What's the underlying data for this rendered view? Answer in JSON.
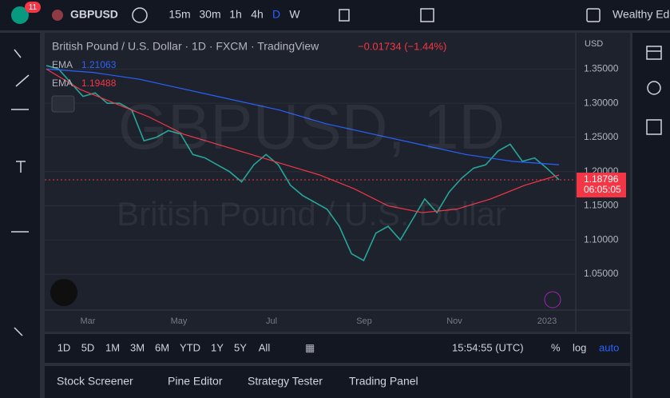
{
  "toolbar": {
    "badge": "11",
    "symbol": "GBPUSD",
    "intervals": [
      "15m",
      "30m",
      "1h",
      "4h",
      "D",
      "W"
    ],
    "account": "Wealthy Edd"
  },
  "chart": {
    "type": "line",
    "header": "British Pound / U.S. Dollar · 1D · FXCM · TradingView",
    "change": "−0.01734 (−1.44%)",
    "watermark": "GBPUSD, 1D",
    "watermark_sub": "British Pound / U.S. Dollar",
    "currency": "USD",
    "ylim": [
      0.9975,
      1.403
    ],
    "yticks": [
      {
        "value": 1.35,
        "label": "1.35000"
      },
      {
        "value": 1.3,
        "label": "1.30000"
      },
      {
        "value": 1.25,
        "label": "1.25000"
      },
      {
        "value": 1.2,
        "label": "1.20000"
      },
      {
        "value": 1.15,
        "label": "1.15000"
      },
      {
        "value": 1.1,
        "label": "1.10000"
      },
      {
        "value": 1.05,
        "label": "1.05000"
      }
    ],
    "xticks": [
      "Mar",
      "May",
      "Jul",
      "Sep",
      "Nov",
      "2023"
    ],
    "last_price": {
      "value": 1.18796,
      "label": "1.18796"
    },
    "countdown": "06:05:05",
    "series": [
      {
        "name": "GBPUSD",
        "color": "#26a69a",
        "values": [
          1.355,
          1.35,
          1.33,
          1.31,
          1.315,
          1.3,
          1.3,
          1.29,
          1.245,
          1.25,
          1.26,
          1.255,
          1.225,
          1.22,
          1.21,
          1.2,
          1.185,
          1.21,
          1.225,
          1.21,
          1.18,
          1.165,
          1.155,
          1.145,
          1.12,
          1.08,
          1.07,
          1.11,
          1.12,
          1.1,
          1.13,
          1.16,
          1.14,
          1.17,
          1.19,
          1.205,
          1.21,
          1.23,
          1.24,
          1.215,
          1.22,
          1.205,
          1.188
        ]
      },
      {
        "name": "EMA",
        "color": "#2962ff",
        "label": "1.21063",
        "values": [
          1.35,
          1.345,
          1.335,
          1.32,
          1.305,
          1.29,
          1.27,
          1.255,
          1.24,
          1.225,
          1.215,
          1.21
        ]
      },
      {
        "name": "EMA",
        "color": "#f23645",
        "label": "1.19488",
        "values": [
          1.35,
          1.32,
          1.3,
          1.28,
          1.255,
          1.24,
          1.225,
          1.21,
          1.195,
          1.175,
          1.15,
          1.14,
          1.145,
          1.16,
          1.18,
          1.195
        ]
      }
    ]
  },
  "bottom_bar": {
    "ranges": [
      "1D",
      "5D",
      "1M",
      "3M",
      "6M",
      "YTD",
      "1Y",
      "5Y",
      "All"
    ],
    "clock": "15:54:55 (UTC)",
    "percent": "%",
    "log": "log",
    "auto": "auto"
  },
  "panel_tabs": [
    "Stock Screener",
    "Pine Editor",
    "Strategy Tester",
    "Trading Panel"
  ]
}
